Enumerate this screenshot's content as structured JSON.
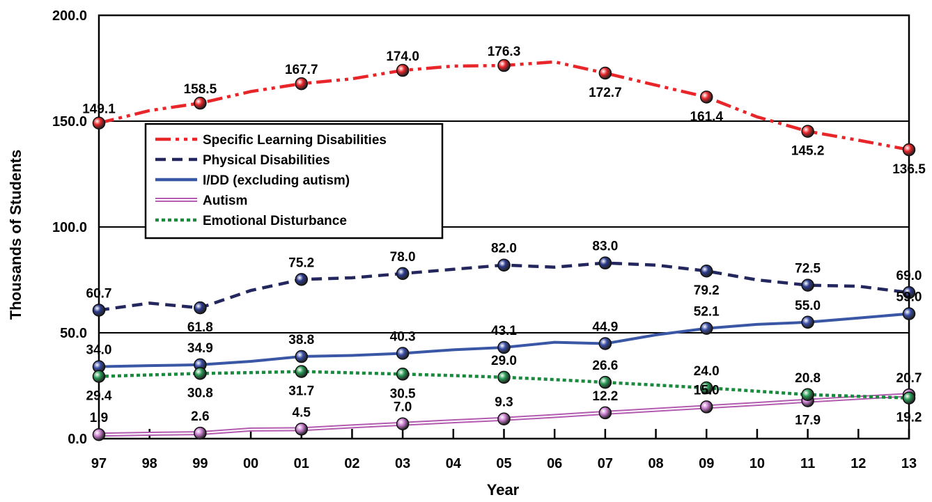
{
  "chart_data": {
    "type": "line",
    "xlabel": "Year",
    "ylabel": "Thousands of Students",
    "ylim": [
      0,
      200
    ],
    "yticks": [
      "0.0",
      "50.0",
      "100.0",
      "150.0",
      "200.0"
    ],
    "x": [
      "97",
      "98",
      "99",
      "00",
      "01",
      "02",
      "03",
      "04",
      "05",
      "06",
      "07",
      "08",
      "09",
      "10",
      "11",
      "12",
      "13"
    ],
    "grid": "horizontal",
    "legend_position": "upper-left",
    "series": [
      {
        "name": "Specific Learning Disabilities",
        "color": "#e8262a",
        "style": "dash-dot-dot",
        "values": [
          149.1,
          155,
          158.5,
          164,
          167.7,
          170,
          174.0,
          176,
          176.3,
          178,
          172.7,
          167,
          161.4,
          152,
          145.2,
          141,
          136.5
        ],
        "labels": [
          "149.1",
          "",
          "158.5",
          "",
          "167.7",
          "",
          "174.0",
          "",
          "176.3",
          "",
          "172.7",
          "",
          "161.4",
          "",
          "145.2",
          "",
          "136.5"
        ],
        "marker_color": "#e8262a"
      },
      {
        "name": "Physical Disabilities",
        "color": "#23275e",
        "style": "dashed",
        "values": [
          60.7,
          64,
          61.8,
          70,
          75.2,
          76,
          78.0,
          80,
          82.0,
          81,
          83.0,
          82,
          79.2,
          75,
          72.5,
          72,
          69.0
        ],
        "labels": [
          "60.7",
          "",
          "61.8",
          "",
          "75.2",
          "",
          "78.0",
          "",
          "82.0",
          "",
          "83.0",
          "",
          "79.2",
          "",
          "72.5",
          "",
          "69.0"
        ],
        "marker_color": "#2b3a8c"
      },
      {
        "name": "I/DD (excluding autism)",
        "color": "#3a57a6",
        "style": "solid",
        "values": [
          34.0,
          34.5,
          34.9,
          36.5,
          38.8,
          39.3,
          40.3,
          42,
          43.1,
          45.5,
          44.9,
          49,
          52.1,
          54,
          55.0,
          57,
          59.0
        ],
        "labels": [
          "34.0",
          "",
          "34.9",
          "",
          "38.8",
          "",
          "40.3",
          "",
          "43.1",
          "",
          "44.9",
          "",
          "52.1",
          "",
          "55.0",
          "",
          "59.0"
        ],
        "marker_color": "#3a4ea6"
      },
      {
        "name": "Autism",
        "color": "#b25bb0",
        "style": "double",
        "values": [
          1.9,
          2.3,
          2.6,
          4.3,
          4.5,
          5.8,
          7.0,
          8.2,
          9.3,
          10.7,
          12.2,
          13.6,
          15.0,
          16.4,
          17.9,
          19.3,
          20.7
        ],
        "labels": [
          "1.9",
          "",
          "2.6",
          "",
          "4.5",
          "",
          "7.0",
          "",
          "9.3",
          "",
          "12.2",
          "",
          "15.0",
          "",
          "17.9",
          "",
          "20.7"
        ],
        "marker_color": "#c77ccd"
      },
      {
        "name": "Emotional Disturbance",
        "color": "#1a8a3e",
        "style": "dotted",
        "values": [
          29.4,
          30.1,
          30.8,
          31.2,
          31.7,
          31.1,
          30.5,
          29.8,
          29.0,
          27.9,
          26.6,
          25.3,
          24.0,
          22.4,
          20.8,
          20.0,
          19.2
        ],
        "labels": [
          "29.4",
          "",
          "30.8",
          "",
          "31.7",
          "",
          "30.5",
          "",
          "29.0",
          "",
          "26.6",
          "",
          "24.0",
          "",
          "20.8",
          "",
          "19.2"
        ],
        "marker_color": "#2a9a55"
      }
    ]
  }
}
